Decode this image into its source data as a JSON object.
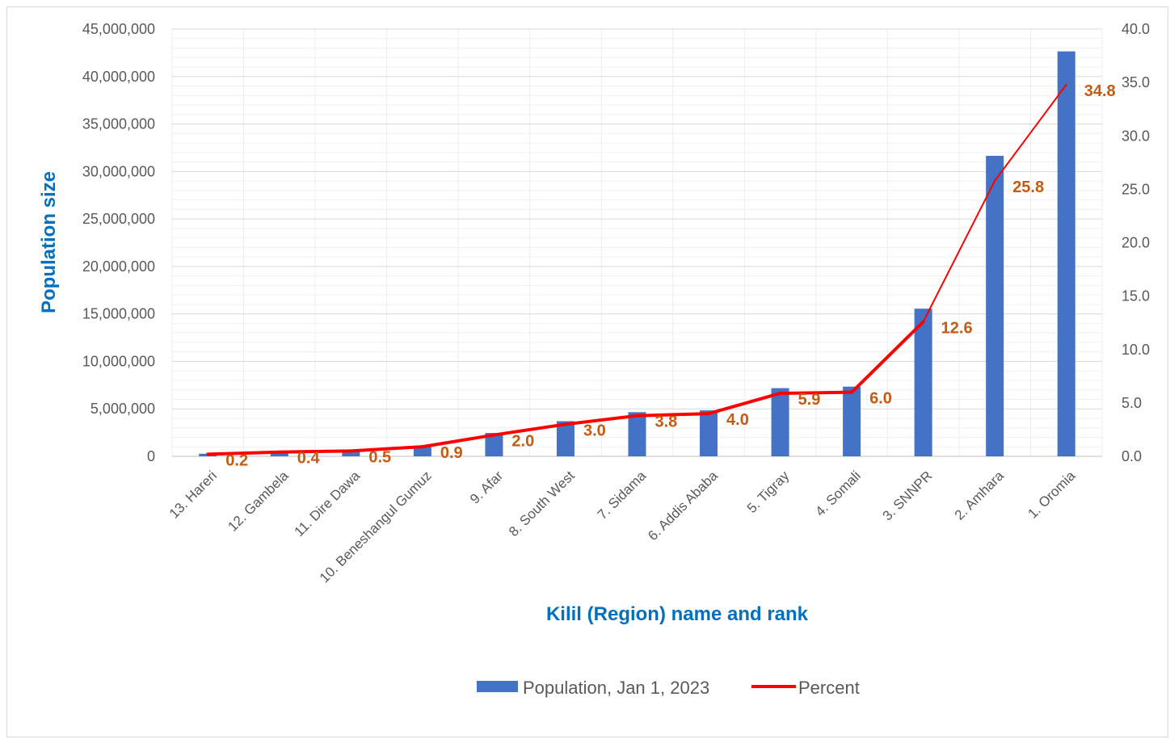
{
  "chart_data": {
    "type": "bar",
    "categories": [
      "13.  Hareri",
      "12.  Gambela",
      "11.  Dire Dawa",
      "10.  Beneshangul Gumuz",
      "9.      Afar",
      "8.      South West",
      "7.      Sidama",
      "6.      Addis Ababa",
      "5.      Tigray",
      "4.      Somali",
      "3.      SNNPR",
      "2.      Amhara",
      "1.      Oromia"
    ],
    "series": [
      {
        "name": "Population, Jan 1, 2023",
        "type": "bar",
        "axis": "left",
        "color": "#4472c4",
        "values": [
          270000,
          480000,
          590000,
          1130000,
          2460000,
          3700000,
          4650000,
          4840000,
          7180000,
          7340000,
          15550000,
          31650000,
          42650000
        ]
      },
      {
        "name": "Percent",
        "type": "line",
        "axis": "right",
        "color": "#ff0000",
        "values": [
          0.2,
          0.4,
          0.5,
          0.9,
          2.0,
          3.0,
          3.8,
          4.0,
          5.9,
          6.0,
          12.6,
          25.8,
          34.8
        ]
      }
    ],
    "data_labels": [
      "0.2",
      "0.4",
      "0.5",
      "0.9",
      "2.0",
      "3.0",
      "3.8",
      "4.0",
      "5.9",
      "6.0",
      "12.6",
      "25.8",
      "34.8"
    ],
    "xlabel": "Kilil (Region) name and rank",
    "ylabel": "Population size",
    "ylim": [
      0,
      45000000
    ],
    "y2lim": [
      0,
      40
    ],
    "y_ticks": [
      "0",
      "5,000,000",
      "10,000,000",
      "15,000,000",
      "20,000,000",
      "25,000,000",
      "30,000,000",
      "35,000,000",
      "40,000,000",
      "45,000,000"
    ],
    "y2_ticks": [
      "0.0",
      "5.0",
      "10.0",
      "15.0",
      "20.0",
      "25.0",
      "30.0",
      "35.0",
      "40.0"
    ],
    "grid": true,
    "legend_position": "bottom"
  }
}
